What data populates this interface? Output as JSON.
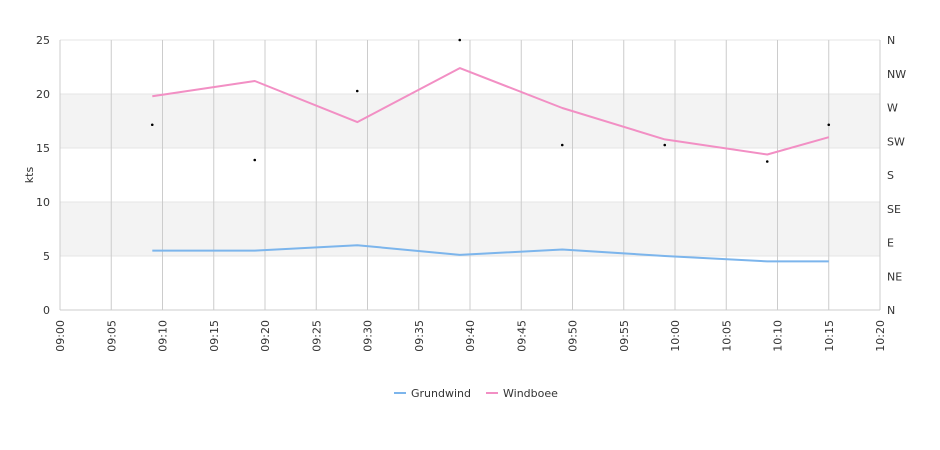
{
  "chart_data": {
    "type": "line",
    "ylabel": "kts",
    "ylim": [
      0,
      25
    ],
    "y_ticks": [
      "0",
      "5",
      "10",
      "15",
      "20",
      "25"
    ],
    "x_range": [
      "09:00",
      "10:20"
    ],
    "x_ticks": [
      "09:00",
      "09:05",
      "09:10",
      "09:15",
      "09:20",
      "09:25",
      "09:30",
      "09:35",
      "09:40",
      "09:45",
      "09:50",
      "09:55",
      "10:00",
      "10:05",
      "10:10",
      "10:15",
      "10:20"
    ],
    "y2_ticks": [
      "N",
      "NE",
      "E",
      "SE",
      "S",
      "SW",
      "W",
      "NW",
      "N"
    ],
    "y2_range_degrees": [
      0,
      360
    ],
    "bands": [
      [
        5,
        10
      ],
      [
        15,
        20
      ]
    ],
    "x": [
      "09:09",
      "09:19",
      "09:29",
      "09:39",
      "09:49",
      "09:59",
      "10:09",
      "10:15"
    ],
    "series": [
      {
        "name": "Grundwind",
        "color": "#7cb5ec",
        "values": [
          5.5,
          5.5,
          6.0,
          5.1,
          5.6,
          5.0,
          4.5,
          4.5
        ]
      },
      {
        "name": "Windboee",
        "color": "#f28fc4",
        "values": [
          19.8,
          21.2,
          17.4,
          22.4,
          18.7,
          15.8,
          14.4,
          16.0
        ]
      }
    ],
    "direction": {
      "x": [
        "09:09",
        "09:19",
        "09:29",
        "09:39",
        "09:49",
        "09:59",
        "10:09",
        "10:15"
      ],
      "degrees": [
        247,
        200,
        292,
        360,
        220,
        220,
        198,
        247
      ],
      "color": "#000000"
    },
    "legend_position": "bottom-center",
    "grid": true
  }
}
